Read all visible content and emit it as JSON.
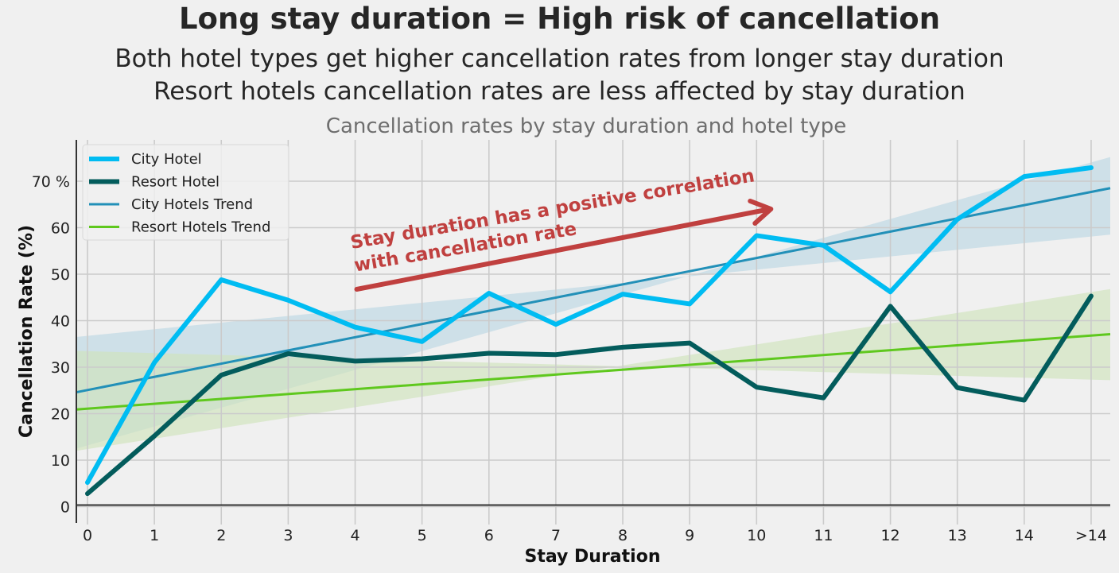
{
  "headline": {
    "title": "Long stay duration = High risk of cancellation",
    "subtitle_1": "Both hotel types get higher cancellation rates from longer stay duration",
    "subtitle_2": "Resort hotels cancellation rates are less affected by stay duration"
  },
  "chart_data": {
    "type": "line",
    "title": "Cancellation rates by stay duration and hotel type",
    "xlabel": "Stay Duration",
    "ylabel": "Cancellation Rate (%)",
    "categories": [
      "0",
      "1",
      "2",
      "3",
      "4",
      "5",
      "6",
      "7",
      "8",
      "9",
      "10",
      "11",
      "12",
      "13",
      "14",
      ">14"
    ],
    "ylim": [
      -4,
      78.5
    ],
    "yticks": [
      0,
      10,
      20,
      30,
      40,
      50,
      60,
      70
    ],
    "ytick_labels": [
      "0",
      "10",
      "20",
      "30",
      "40",
      "50",
      "60",
      "70 %"
    ],
    "grid": true,
    "legend_position": "top-left",
    "series": [
      {
        "name": "City Hotel",
        "color": "#00bcf2",
        "values": [
          5.2,
          31.0,
          48.8,
          44.4,
          38.6,
          35.5,
          45.9,
          39.2,
          45.7,
          43.6,
          58.3,
          56.2,
          46.2,
          61.8,
          71.0,
          72.9
        ]
      },
      {
        "name": "Resort Hotel",
        "color": "#035c5c",
        "values": [
          2.8,
          15.2,
          28.3,
          32.9,
          31.3,
          31.8,
          33.0,
          32.7,
          34.3,
          35.2,
          25.7,
          23.4,
          43.1,
          25.6,
          22.9,
          45.3
        ]
      }
    ],
    "trends": [
      {
        "name": "City Hotels Trend",
        "color": "#2290b8",
        "band_color": "#bcd7e3",
        "start": 24.6,
        "end": 68.5,
        "band_low": [
          36.5,
          58.5
        ],
        "band_high": [
          12.5,
          75.2
        ]
      },
      {
        "name": "Resort Hotels Trend",
        "color": "#5fc81e",
        "band_color": "#cfe3bb",
        "start": 20.9,
        "end": 37.1,
        "band_low": [
          33.5,
          27.2
        ],
        "band_high": [
          12.0,
          46.8
        ]
      }
    ],
    "annotation": {
      "line_1": "Stay duration has a positive correlation",
      "line_2": "with cancellation rate",
      "color": "#c0403f"
    }
  }
}
